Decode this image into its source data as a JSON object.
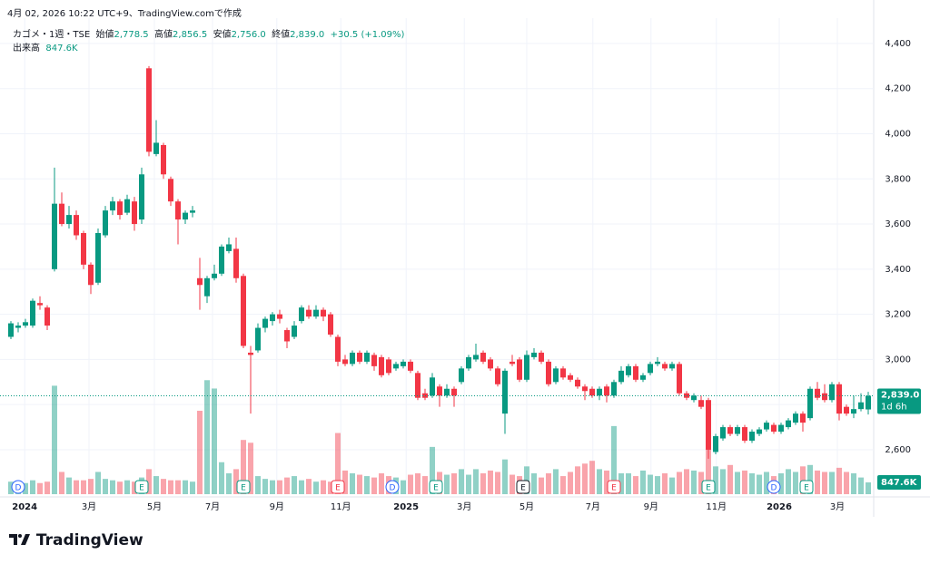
{
  "header": {
    "created": "4月 02, 2026 10:22 UTC+9、TradingView.comで作成",
    "brand": "TradingView"
  },
  "chart_data": {
    "type": "candlestick",
    "symbol": "カゴメ・1週・TSE",
    "legend": {
      "open_label": "始値",
      "open": "2,778.5",
      "high_label": "高値",
      "high": "2,856.5",
      "low_label": "安値",
      "low": "2,756.0",
      "close_label": "終値",
      "close": "2,839.0",
      "change": "+30.5 (+1.09%)",
      "volume_label": "出来高",
      "volume": "847.6K"
    },
    "open": [
      3100,
      3140,
      3150,
      3150,
      3250,
      3230,
      3400,
      3690,
      3600,
      3640,
      3560,
      3420,
      3340,
      3550,
      3660,
      3700,
      3650,
      3700,
      3620,
      4290,
      3910,
      3950,
      3800,
      3700,
      3620,
      3650,
      3360,
      3280,
      3360,
      3380,
      3480,
      3490,
      3370,
      3030,
      3040,
      3140,
      3170,
      3200,
      3130,
      3100,
      3170,
      3220,
      3190,
      3220,
      3200,
      3100,
      3000,
      2980,
      3030,
      2990,
      3020,
      3010,
      3000,
      2960,
      2970,
      2990,
      2940,
      2850,
      2840,
      2880,
      2840,
      2870,
      2900,
      2960,
      3000,
      3030,
      3000,
      2960,
      2760,
      2990,
      3000,
      2910,
      3010,
      3030,
      2990,
      2900,
      2960,
      2930,
      2910,
      2880,
      2870,
      2840,
      2880,
      2840,
      2900,
      2930,
      2970,
      2910,
      2940,
      2980,
      2980,
      2960,
      2980,
      2850,
      2820,
      2820,
      2820,
      2590,
      2650,
      2700,
      2670,
      2700,
      2640,
      2670,
      2690,
      2710,
      2680,
      2700,
      2720,
      2760,
      2740,
      2870,
      2850,
      2820,
      2890,
      2790,
      2760,
      2780,
      2778.5
    ],
    "high": [
      3170,
      3165,
      3180,
      3270,
      3280,
      3240,
      3850,
      3740,
      3680,
      3660,
      3570,
      3430,
      3580,
      3680,
      3720,
      3710,
      3730,
      3720,
      3850,
      4300,
      4060,
      3960,
      3810,
      3710,
      3660,
      3680,
      3450,
      3370,
      3420,
      3510,
      3540,
      3540,
      3380,
      3060,
      3160,
      3190,
      3210,
      3220,
      3140,
      3170,
      3240,
      3240,
      3240,
      3230,
      3210,
      3110,
      3020,
      3040,
      3040,
      3040,
      3030,
      3020,
      3010,
      2990,
      3000,
      3000,
      2950,
      2870,
      2940,
      2890,
      2890,
      2880,
      2970,
      3020,
      3070,
      3040,
      3010,
      2970,
      2960,
      3020,
      3010,
      3040,
      3050,
      3040,
      3000,
      2970,
      2970,
      2940,
      2920,
      2890,
      2880,
      2880,
      2890,
      2910,
      2970,
      2980,
      2980,
      2940,
      2990,
      3010,
      2990,
      2990,
      2990,
      2860,
      2850,
      2840,
      2830,
      2670,
      2710,
      2710,
      2710,
      2710,
      2690,
      2700,
      2730,
      2720,
      2720,
      2740,
      2770,
      2770,
      2880,
      2900,
      2890,
      2900,
      2900,
      2800,
      2840,
      2850,
      2856.5
    ],
    "low": [
      3090,
      3120,
      3140,
      3140,
      3220,
      3130,
      3390,
      3590,
      3580,
      3530,
      3400,
      3290,
      3330,
      3540,
      3640,
      3620,
      3640,
      3570,
      3600,
      3900,
      3900,
      3800,
      3680,
      3510,
      3600,
      3630,
      3220,
      3250,
      3350,
      3370,
      3470,
      3340,
      3050,
      2760,
      3030,
      3120,
      3150,
      3160,
      3050,
      3090,
      3160,
      3180,
      3180,
      3170,
      3100,
      2970,
      2970,
      2970,
      2980,
      2980,
      2950,
      2920,
      2930,
      2950,
      2960,
      2940,
      2820,
      2820,
      2830,
      2790,
      2830,
      2790,
      2890,
      2950,
      2990,
      2980,
      2950,
      2880,
      2670,
      2970,
      2900,
      2900,
      3000,
      2980,
      2880,
      2890,
      2910,
      2900,
      2870,
      2820,
      2830,
      2820,
      2810,
      2830,
      2890,
      2920,
      2900,
      2900,
      2930,
      2970,
      2950,
      2950,
      2840,
      2820,
      2810,
      2780,
      2560,
      2580,
      2640,
      2660,
      2660,
      2630,
      2630,
      2660,
      2680,
      2670,
      2670,
      2690,
      2710,
      2680,
      2730,
      2820,
      2810,
      2810,
      2730,
      2750,
      2740,
      2770,
      2756
    ],
    "close": [
      3160,
      3150,
      3165,
      3260,
      3240,
      3150,
      3690,
      3600,
      3640,
      3550,
      3420,
      3330,
      3560,
      3660,
      3700,
      3640,
      3710,
      3600,
      3820,
      3920,
      3960,
      3820,
      3700,
      3620,
      3650,
      3660,
      3330,
      3360,
      3380,
      3500,
      3510,
      3360,
      3060,
      3020,
      3140,
      3180,
      3200,
      3180,
      3080,
      3150,
      3230,
      3190,
      3220,
      3190,
      3110,
      2990,
      2980,
      3030,
      2990,
      3030,
      2970,
      2930,
      2940,
      2980,
      2990,
      2950,
      2830,
      2830,
      2920,
      2840,
      2870,
      2840,
      2960,
      3010,
      3020,
      2990,
      2960,
      2890,
      2950,
      2980,
      2910,
      3020,
      3030,
      2990,
      2890,
      2960,
      2920,
      2910,
      2880,
      2860,
      2840,
      2870,
      2840,
      2900,
      2950,
      2970,
      2910,
      2930,
      2980,
      2990,
      2960,
      2980,
      2850,
      2830,
      2840,
      2790,
      2600,
      2660,
      2700,
      2670,
      2700,
      2640,
      2680,
      2690,
      2720,
      2680,
      2710,
      2730,
      2760,
      2720,
      2870,
      2830,
      2820,
      2890,
      2760,
      2760,
      2780,
      2810,
      2839
    ],
    "volume": [
      900000,
      800000,
      800000,
      1000000,
      800000,
      900000,
      7800000,
      1600000,
      1200000,
      1000000,
      1000000,
      1100000,
      1600000,
      1100000,
      1000000,
      900000,
      1000000,
      900000,
      1200000,
      1800000,
      1300000,
      1100000,
      1000000,
      1000000,
      1000000,
      900000,
      6000000,
      8200000,
      7600000,
      2300000,
      1500000,
      1800000,
      3900000,
      3700000,
      1300000,
      1100000,
      1000000,
      1000000,
      1200000,
      1300000,
      1000000,
      1100000,
      900000,
      1000000,
      900000,
      4400000,
      1700000,
      1500000,
      1400000,
      1300000,
      1200000,
      1500000,
      1300000,
      1200000,
      1000000,
      1400000,
      1500000,
      1300000,
      3400000,
      1600000,
      1400000,
      1500000,
      1800000,
      1400000,
      1800000,
      1500000,
      1700000,
      1600000,
      2500000,
      1400000,
      1300000,
      2000000,
      1500000,
      1200000,
      1500000,
      1800000,
      1300000,
      1600000,
      2000000,
      2200000,
      2400000,
      1800000,
      1700000,
      4900000,
      1500000,
      1500000,
      1300000,
      1700000,
      1400000,
      1300000,
      1500000,
      1200000,
      1600000,
      1800000,
      1700000,
      1600000,
      3800000,
      2000000,
      1800000,
      2100000,
      1600000,
      1700000,
      1500000,
      1400000,
      1600000,
      1300000,
      1500000,
      1800000,
      1600000,
      2000000,
      2100000,
      1700000,
      1600000,
      1600000,
      1900000,
      1600000,
      1500000,
      1200000,
      847600
    ],
    "up_color": "#089981",
    "down_color": "#f23645",
    "ylim": [
      2403,
      4472
    ],
    "yticks": [
      {
        "value": 2600,
        "label": "2,600"
      },
      {
        "value": 2800,
        "label": "2,800"
      },
      {
        "value": 3000,
        "label": "3,000"
      },
      {
        "value": 3200,
        "label": "3,200"
      },
      {
        "value": 3400,
        "label": "3,400"
      },
      {
        "value": 3600,
        "label": "3,600"
      },
      {
        "value": 3800,
        "label": "3,800"
      },
      {
        "value": 4000,
        "label": "4,000"
      },
      {
        "value": 4200,
        "label": "4,200"
      },
      {
        "value": 4400,
        "label": "4,400"
      }
    ],
    "volume_ylim": [
      0,
      9000000
    ],
    "xlim": [
      -1.5,
      118.75
    ],
    "xticks": [
      {
        "value": 1.9,
        "label": "2024"
      },
      {
        "value": 10.75,
        "label": "3月"
      },
      {
        "value": 19.75,
        "label": "5月"
      },
      {
        "value": 27.75,
        "label": "7月"
      },
      {
        "value": 36.6,
        "label": "9月"
      },
      {
        "value": 45.4,
        "label": "11月"
      },
      {
        "value": 54.4,
        "label": "2025"
      },
      {
        "value": 62.4,
        "label": "3月"
      },
      {
        "value": 71,
        "label": "5月"
      },
      {
        "value": 80.1,
        "label": "7月"
      },
      {
        "value": 88.1,
        "label": "9月"
      },
      {
        "value": 97.1,
        "label": "11月"
      },
      {
        "value": 105.75,
        "label": "2026"
      },
      {
        "value": 113.75,
        "label": "3月"
      }
    ],
    "grid": true,
    "last_price_label": "2,839.0",
    "countdown": "1d 6h",
    "events": [
      {
        "x": 1,
        "label": "D",
        "color": "#2962ff"
      },
      {
        "x": 18,
        "label": "E",
        "color": "#089981"
      },
      {
        "x": 32,
        "label": "E",
        "color": "#089981"
      },
      {
        "x": 45,
        "label": "E",
        "color": "#f23645"
      },
      {
        "x": 52.5,
        "label": "D",
        "color": "#2962ff"
      },
      {
        "x": 58.5,
        "label": "E",
        "color": "#089981"
      },
      {
        "x": 70.5,
        "label": "E",
        "color": "#131722"
      },
      {
        "x": 83,
        "label": "E",
        "color": "#f23645"
      },
      {
        "x": 96,
        "label": "E",
        "color": "#089981"
      },
      {
        "x": 105,
        "label": "D",
        "color": "#2962ff"
      },
      {
        "x": 109.5,
        "label": "E",
        "color": "#089981"
      }
    ]
  }
}
